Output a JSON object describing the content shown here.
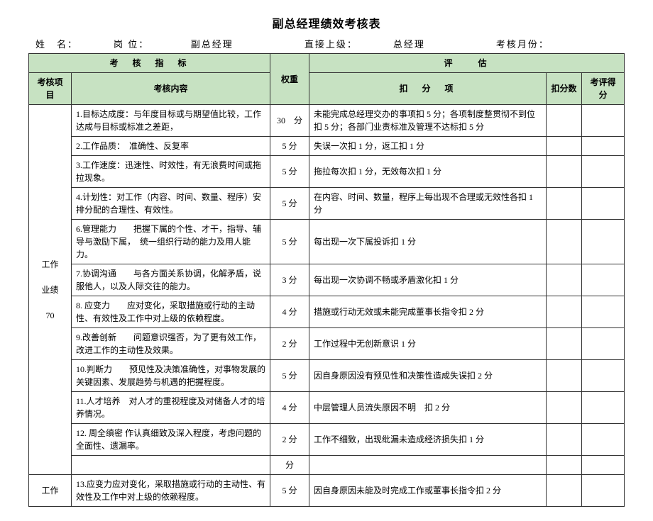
{
  "title": "副总经理绩效考核表",
  "info": {
    "name_label": "姓　名：",
    "post_label": "岗 位：",
    "post_value": "副总经理",
    "sup_label": "直接上级：",
    "sup_value": "总经理",
    "month_label": "考核月份："
  },
  "header": {
    "indicator": "考　核　指　标",
    "weight": "权重",
    "evaluate": "评　　估",
    "project": "考核项目",
    "content": "考核内容",
    "deduct_item": "扣　分　项",
    "deduct_score": "扣分数",
    "final_score": "考评得分"
  },
  "section1": {
    "label_l1": "工作",
    "label_l2": "业绩",
    "label_l3": "70",
    "rows": [
      {
        "content": "1.目标达成度：与年度目标或与期望值比较，工作达成与目标或标准之差距，",
        "weight": "30　分",
        "deduct": "未能完成总经理交办的事项扣 5 分；各项制度整贯彻不到位扣 5 分；各部门业责标准及管理不达标扣 5 分"
      },
      {
        "content": "2.工作品质：　准确性、反复率",
        "weight": "5 分",
        "deduct": "失误一次扣 1 分，返工扣 1 分"
      },
      {
        "content": "3.工作速度：迅速性、时效性，有无浪费时间或拖拉现象。",
        "weight": "5 分",
        "deduct": "拖拉每次扣 1 分，无效每次扣 1 分"
      },
      {
        "content": "4.计划性：对工作（内容、时间、数量、程序）安排分配的合理性、有效性。",
        "weight": "5 分",
        "deduct": "在内容、时间、数量，程序上每出现不合理或无效性各扣 1 分"
      },
      {
        "content": "6.管理能力　　把握下属的个性、才干，指导、辅导与激励下属，　统一组织行动的能力及用人能力。",
        "weight": "5 分",
        "deduct": "每出现一次下属投诉扣 1 分"
      },
      {
        "content": "7.协调沟通　　与各方面关系协调，化解矛盾，说服他人，以及人际交往的能力。",
        "weight": "3 分",
        "deduct": "每出现一次协调不畅或矛盾激化扣 1 分"
      },
      {
        "content": "8. 应变力　　应对变化，采取措施或行动的主动性、有效性及工作中对上级的依赖程度。",
        "weight": "4 分",
        "deduct": "措施或行动无效或未能完成董事长指令扣 2 分"
      },
      {
        "content": "9.改善创新　　问题意识强否，为了更有效工作，改进工作的主动性及效果。",
        "weight": "2 分",
        "deduct": "工作过程中无创新意识 1 分"
      },
      {
        "content": "10.判断力　　预见性及决策准确性，对事物发展的关键因素、发展趋势与机遇的把握程度。",
        "weight": "5 分",
        "deduct": "因自身原因没有预见性和决策性造成失误扣 2 分"
      },
      {
        "content": "11.人才培养　对人才的重视程度及对储备人才的培养情况。",
        "weight": "4 分",
        "deduct": "中层管理人员流失原因不明　扣 2 分"
      },
      {
        "content": "12. 周全缜密 作认真细致及深入程度，考虑问题的全面性、遗漏率。",
        "weight": "2 分",
        "deduct": "工作不细致，出现纰漏未造成经济损失扣 1 分"
      },
      {
        "content": "",
        "weight": "分",
        "deduct": ""
      }
    ]
  },
  "section2": {
    "label_l1": "工作",
    "row": {
      "content": "13.应变力应对变化，采取措施或行动的主动性、有效性及工作中对上级的依赖程度。",
      "weight": "5 分",
      "deduct": "因自身原因未能及时完成工作或董事长指令扣 2 分"
    }
  }
}
